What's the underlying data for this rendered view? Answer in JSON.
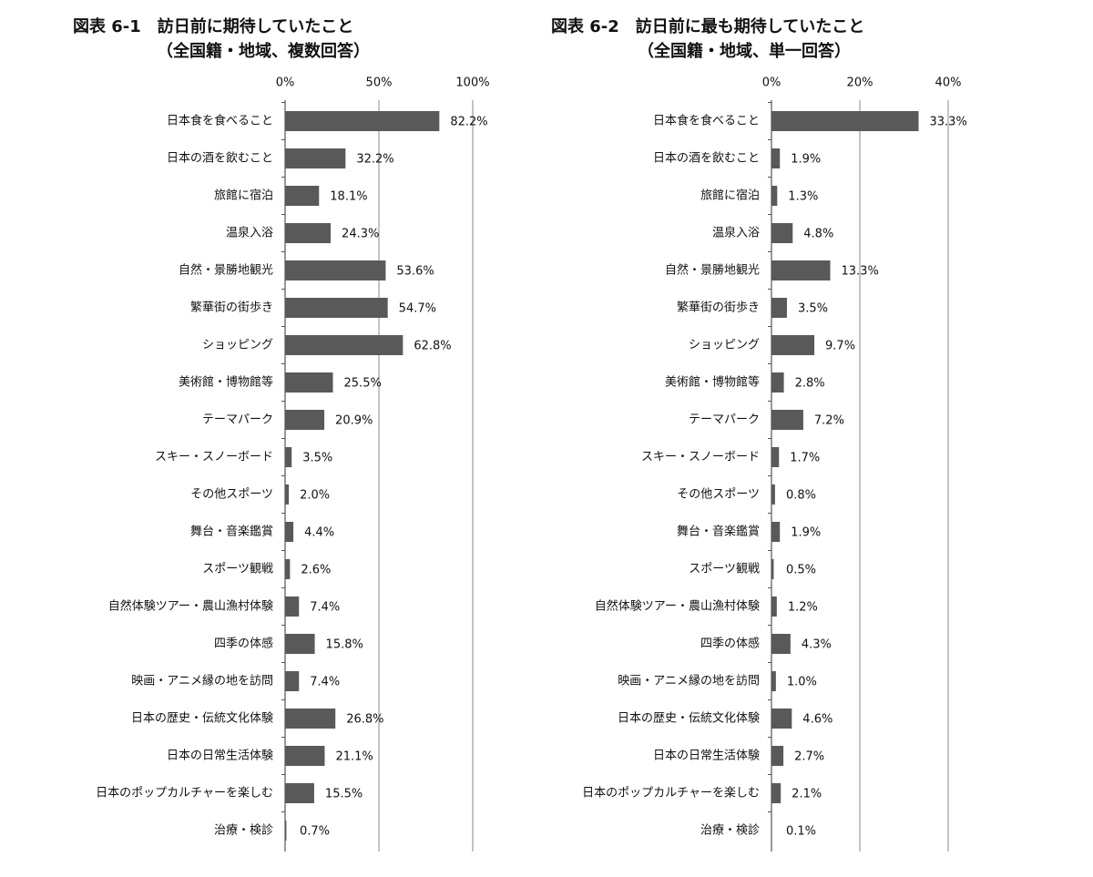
{
  "chart_data": [
    {
      "type": "bar",
      "orientation": "horizontal",
      "title": "図表 6-1　訪日前に期待していたこと",
      "subtitle": "（全国籍・地域、複数回答）",
      "categories": [
        "日本食を食べること",
        "日本の酒を飲むこと",
        "旅館に宿泊",
        "温泉入浴",
        "自然・景勝地観光",
        "繁華街の街歩き",
        "ショッピング",
        "美術館・博物館等",
        "テーマパーク",
        "スキー・スノーボード",
        "その他スポーツ",
        "舞台・音楽鑑賞",
        "スポーツ観戦",
        "自然体験ツアー・農山漁村体験",
        "四季の体感",
        "映画・アニメ縁の地を訪問",
        "日本の歴史・伝統文化体験",
        "日本の日常生活体験",
        "日本のポップカルチャーを楽しむ",
        "治療・検診"
      ],
      "values": [
        82.2,
        32.2,
        18.1,
        24.3,
        53.6,
        54.7,
        62.8,
        25.5,
        20.9,
        3.5,
        2.0,
        4.4,
        2.6,
        7.4,
        15.8,
        7.4,
        26.8,
        21.1,
        15.5,
        0.7
      ],
      "value_labels": [
        "82.2%",
        "32.2%",
        "18.1%",
        "24.3%",
        "53.6%",
        "54.7%",
        "62.8%",
        "25.5%",
        "20.9%",
        "3.5%",
        "2.0%",
        "4.4%",
        "2.6%",
        "7.4%",
        "15.8%",
        "7.4%",
        "26.8%",
        "21.1%",
        "15.5%",
        "0.7%"
      ],
      "color": "#595959",
      "xlim": [
        0,
        100
      ],
      "xticks": [
        {
          "value": 0,
          "label": "0%"
        },
        {
          "value": 50,
          "label": "50%"
        },
        {
          "value": 100,
          "label": "100%"
        }
      ],
      "grid": true
    },
    {
      "type": "bar",
      "orientation": "horizontal",
      "title": "図表 6-2　訪日前に最も期待していたこと",
      "subtitle": "（全国籍・地域、単一回答）",
      "categories": [
        "日本食を食べること",
        "日本の酒を飲むこと",
        "旅館に宿泊",
        "温泉入浴",
        "自然・景勝地観光",
        "繁華街の街歩き",
        "ショッピング",
        "美術館・博物館等",
        "テーマパーク",
        "スキー・スノーボード",
        "その他スポーツ",
        "舞台・音楽鑑賞",
        "スポーツ観戦",
        "自然体験ツアー・農山漁村体験",
        "四季の体感",
        "映画・アニメ縁の地を訪問",
        "日本の歴史・伝統文化体験",
        "日本の日常生活体験",
        "日本のポップカルチャーを楽しむ",
        "治療・検診"
      ],
      "values": [
        33.3,
        1.9,
        1.3,
        4.8,
        13.3,
        3.5,
        9.7,
        2.8,
        7.2,
        1.7,
        0.8,
        1.9,
        0.5,
        1.2,
        4.3,
        1.0,
        4.6,
        2.7,
        2.1,
        0.1
      ],
      "value_labels": [
        "33.3%",
        "1.9%",
        "1.3%",
        "4.8%",
        "13.3%",
        "3.5%",
        "9.7%",
        "2.8%",
        "7.2%",
        "1.7%",
        "0.8%",
        "1.9%",
        "0.5%",
        "1.2%",
        "4.3%",
        "1.0%",
        "4.6%",
        "2.7%",
        "2.1%",
        "0.1%"
      ],
      "color": "#595959",
      "xlim": [
        0,
        40
      ],
      "xticks": [
        {
          "value": 0,
          "label": "0%"
        },
        {
          "value": 20,
          "label": "20%"
        },
        {
          "value": 40,
          "label": "40%"
        }
      ],
      "grid": true
    }
  ]
}
